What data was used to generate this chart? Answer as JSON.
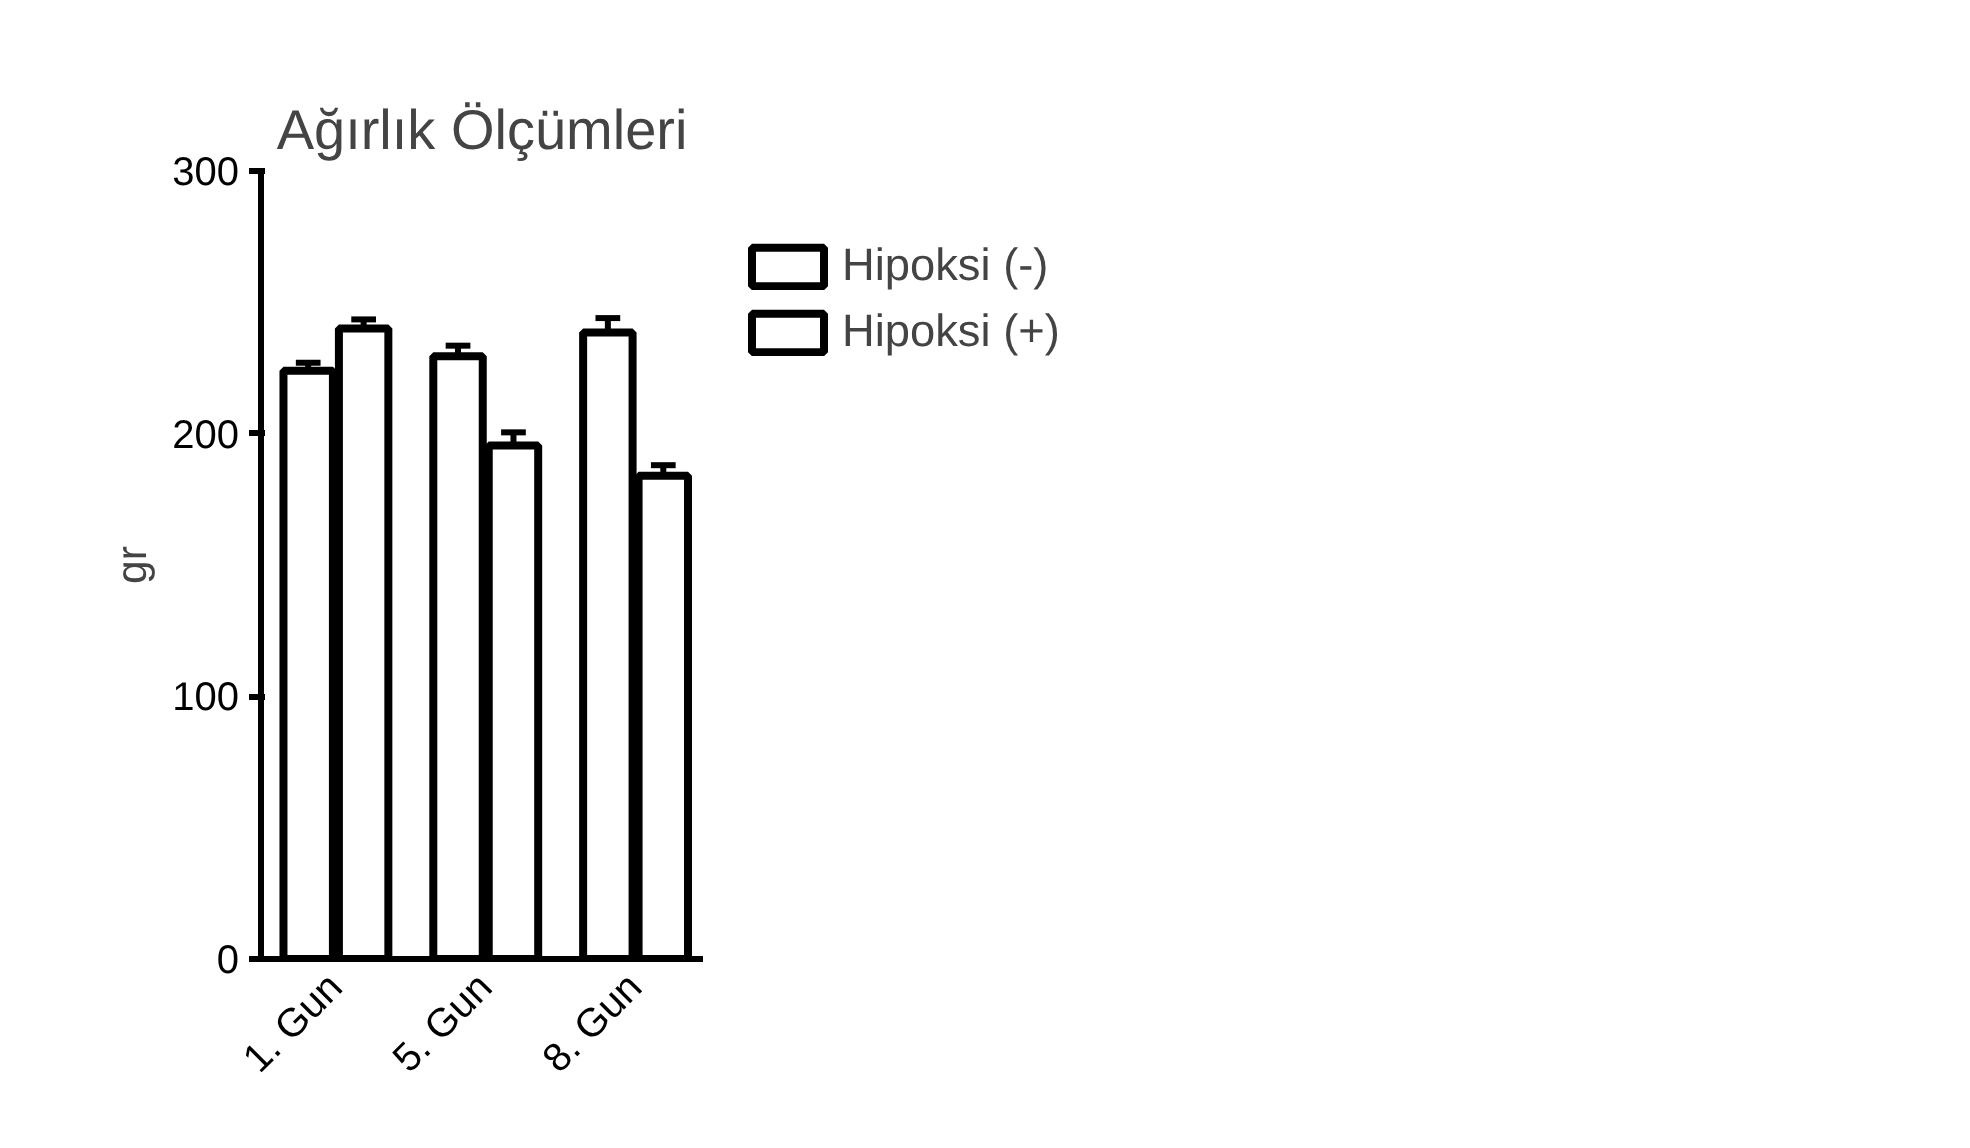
{
  "chart_data": {
    "type": "bar",
    "title": "Ağırlık Ölçümleri",
    "ylabel": "gr",
    "categories": [
      "1. Gun",
      "5. Gun",
      "8. Gun"
    ],
    "series": [
      {
        "name": "Hipoksi (-)",
        "color": "#000000",
        "values": [
          224,
          229.5,
          238.5
        ],
        "errors": [
          3,
          4,
          5.5
        ]
      },
      {
        "name": "Hipoksi (+)",
        "color": "#000000",
        "values": [
          240,
          195.5,
          184
        ],
        "errors": [
          3.5,
          5,
          4
        ]
      }
    ],
    "ylim": [
      0,
      300
    ],
    "yticks": [
      0,
      100,
      200,
      300
    ],
    "grid": false,
    "legend": "top right"
  }
}
